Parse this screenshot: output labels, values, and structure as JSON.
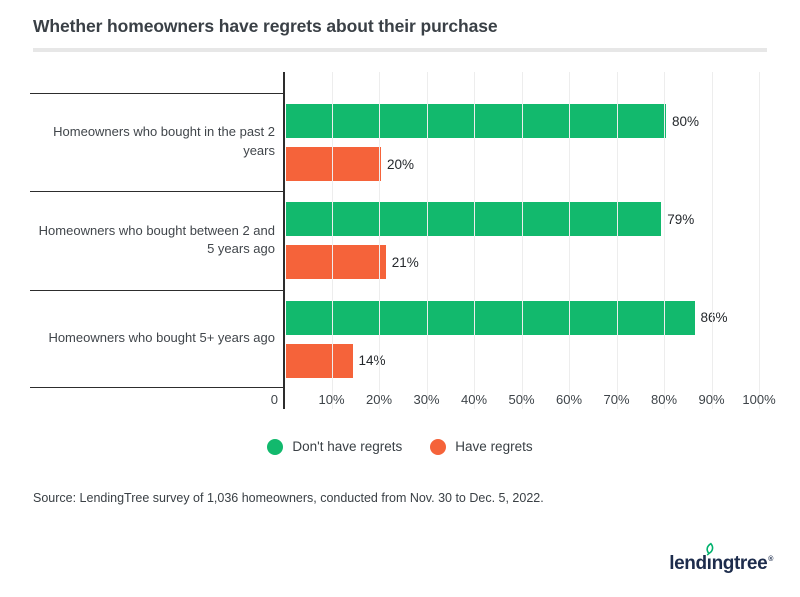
{
  "title": "Whether homeowners have regrets about their purchase",
  "source_note": "Source: LendingTree survey of 1,036 homeowners, conducted from Nov. 30 to Dec. 5, 2022.",
  "colors": {
    "positive_green": "#12b96d",
    "negative_orange": "#f5633a",
    "axis": "#2d2d2d",
    "gridline": "#ededed",
    "logo_navy": "#1d2c4c",
    "logo_leaf_green": "#00b16d"
  },
  "chart_data": {
    "type": "bar",
    "orientation": "horizontal",
    "title": "Whether homeowners have regrets about their purchase",
    "categories": [
      "Homeowners who bought in the past 2 years",
      "Homeowners who bought between 2 and 5 years ago",
      "Homeowners who bought 5+ years ago"
    ],
    "series": [
      {
        "name": "Don't have regrets",
        "color": "#12b96d",
        "values": [
          80,
          79,
          86
        ]
      },
      {
        "name": "Have regrets",
        "color": "#f5633a",
        "values": [
          20,
          21,
          14
        ]
      }
    ],
    "value_label_suffix": "%",
    "x_ticks": [
      "0",
      "10%",
      "20%",
      "30%",
      "40%",
      "50%",
      "60%",
      "70%",
      "80%",
      "90%",
      "100%"
    ],
    "xlim": [
      0,
      100
    ],
    "grid": "vertical",
    "legend_position": "bottom-center"
  },
  "logo": {
    "text_pre": "lend",
    "text_i": "ı",
    "text_post": "ngtree",
    "reg_mark": "®"
  }
}
